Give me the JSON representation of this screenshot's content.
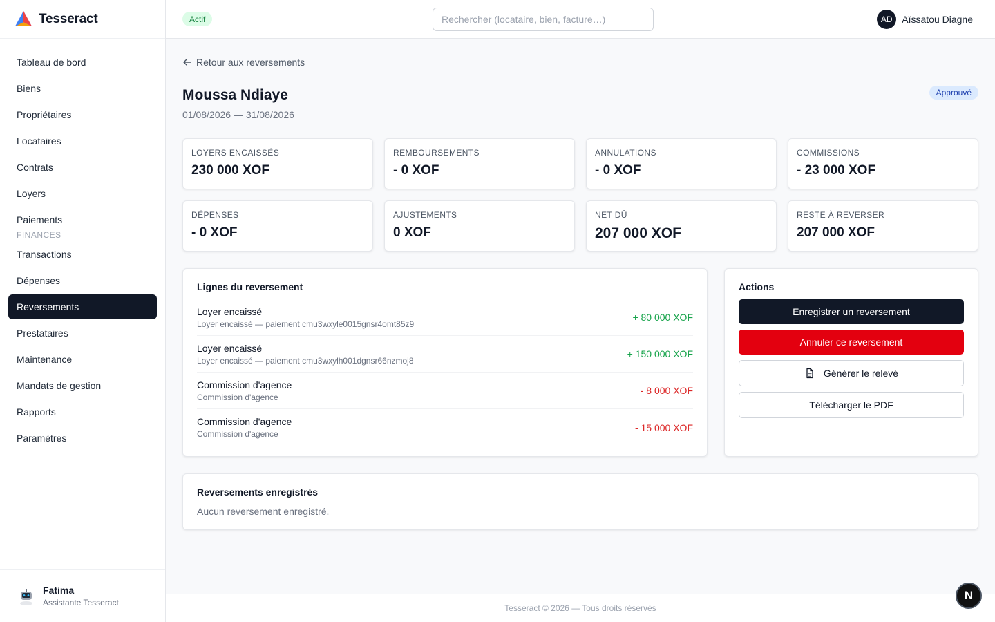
{
  "app": {
    "name": "Tesseract"
  },
  "sidebar": {
    "items": [
      {
        "label": "Tableau de bord"
      },
      {
        "label": "Biens"
      },
      {
        "label": "Propriétaires"
      },
      {
        "label": "Locataires"
      },
      {
        "label": "Contrats"
      },
      {
        "label": "Loyers"
      },
      {
        "label": "Paiements"
      }
    ],
    "section_label": "FINANCES",
    "finance_items": [
      {
        "label": "Transactions"
      },
      {
        "label": "Dépenses"
      },
      {
        "label": "Reversements",
        "active": true
      },
      {
        "label": "Prestataires"
      },
      {
        "label": "Maintenance"
      },
      {
        "label": "Mandats de gestion"
      },
      {
        "label": "Rapports"
      },
      {
        "label": "Paramètres"
      }
    ],
    "assistant": {
      "name": "Fatima",
      "role": "Assistante Tesseract"
    }
  },
  "topbar": {
    "status_badge": "Actif",
    "search_placeholder": "Rechercher (locataire, bien, facture…)",
    "user_initials": "AD",
    "user_name": "Aïssatou Diagne"
  },
  "page": {
    "back_link": "Retour aux reversements",
    "title": "Moussa Ndiaye",
    "period": "01/08/2026 — 31/08/2026",
    "status": "Approuvé"
  },
  "kpis": [
    {
      "label": "LOYERS ENCAISSÉS",
      "value": "230 000 XOF"
    },
    {
      "label": "REMBOURSEMENTS",
      "value": "- 0 XOF"
    },
    {
      "label": "ANNULATIONS",
      "value": "- 0 XOF"
    },
    {
      "label": "COMMISSIONS",
      "value": "- 23 000 XOF"
    },
    {
      "label": "DÉPENSES",
      "value": "- 0 XOF"
    },
    {
      "label": "AJUSTEMENTS",
      "value": "0 XOF"
    },
    {
      "label": "NET DÛ",
      "value": "207 000 XOF"
    },
    {
      "label": "RESTE À REVERSER",
      "value": "207 000 XOF"
    }
  ],
  "lines_card": {
    "title": "Lignes du reversement",
    "lines": [
      {
        "title": "Loyer encaissé",
        "subtitle": "Loyer encaissé — paiement cmu3wxyle0015gnsr4omt85z9",
        "amount": "+ 80 000 XOF"
      },
      {
        "title": "Loyer encaissé",
        "subtitle": "Loyer encaissé — paiement cmu3wxylh001dgnsr66nzmoj8",
        "amount": "+ 150 000 XOF"
      },
      {
        "title": "Commission d'agence",
        "subtitle": "Commission d'agence",
        "amount": "- 8 000 XOF"
      },
      {
        "title": "Commission d'agence",
        "subtitle": "Commission d'agence",
        "amount": "- 15 000 XOF"
      }
    ]
  },
  "actions_card": {
    "title": "Actions",
    "record_button": "Enregistrer un reversement",
    "cancel_button": "Annuler ce reversement",
    "generate_button": "Générer le relevé",
    "download_button": "Télécharger le PDF"
  },
  "registered_card": {
    "title": "Reversements enregistrés",
    "empty_text": "Aucun reversement enregistré."
  },
  "footer": {
    "text": "Tesseract © 2026 — Tous droits réservés"
  },
  "dev_badge": {
    "letter": "N"
  },
  "colors": {
    "accent_dark": "#111827",
    "danger": "#e3000f",
    "positive": "#16a34a",
    "negative": "#dc2626"
  },
  "icons": [
    "tesseract-logo-icon",
    "arrow-left-icon",
    "document-icon",
    "assistant-bot-icon"
  ]
}
